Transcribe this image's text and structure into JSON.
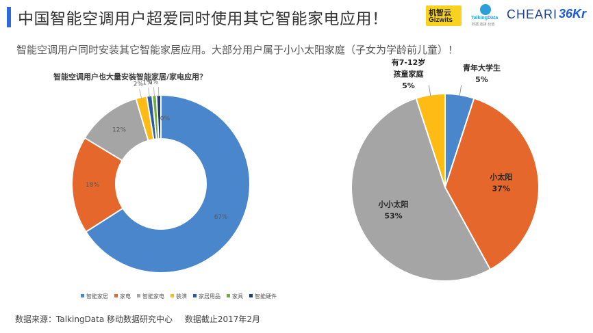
{
  "header": {
    "title": "中国智能空调用户超爱同时使用其它智能家电应用！",
    "accent_color": "#2e6bd6",
    "logos": {
      "gizwits_cn": "机智云",
      "gizwits_en": "Gizwits",
      "talkingdata": "TalkingData",
      "talkingdata_sub": "数据·连接·价值",
      "cheari": "CHEARI",
      "kr36": "36Kr"
    }
  },
  "subtitle": "智能空调用户同时安装其它智能家居应用。大部分用户属于小小太阳家庭（子女为学龄前儿童）！",
  "chart_data": [
    {
      "type": "donut",
      "title": "智能空调用户也大量安装智能家居/家电应用？",
      "categories": [
        "智能家居",
        "家电",
        "智能家电",
        "装潢",
        "家居用品",
        "家具",
        "智能硬件"
      ],
      "values": [
        67,
        18,
        12,
        2,
        1,
        0,
        0
      ],
      "labels": [
        "67%",
        "18%",
        "12%",
        "2%",
        "1%",
        "0%",
        "0%"
      ],
      "colors": [
        "#4a86cc",
        "#e5672b",
        "#a5a5a5",
        "#fdbb13",
        "#2c5aa0",
        "#6fae3b",
        "#1f3c73"
      ],
      "legend_position": "bottom"
    },
    {
      "type": "pie",
      "categories": [
        "青年大学生",
        "小太阳",
        "小小太阳",
        "有7-12岁孩童家庭"
      ],
      "label_lines": [
        [
          "青年大学生",
          "5%"
        ],
        [
          "小太阳",
          "37%"
        ],
        [
          "小小太阳",
          "53%"
        ],
        [
          "有7-12岁",
          "孩童家庭",
          "5%"
        ]
      ],
      "values": [
        5,
        37,
        53,
        5
      ],
      "colors": [
        "#4a86cc",
        "#e5672b",
        "#a5a5a5",
        "#fdbb13"
      ]
    }
  ],
  "source": {
    "text": "数据来源：TalkingData 移动数据研究中心",
    "cutoff": "数据截止2017年2月"
  }
}
